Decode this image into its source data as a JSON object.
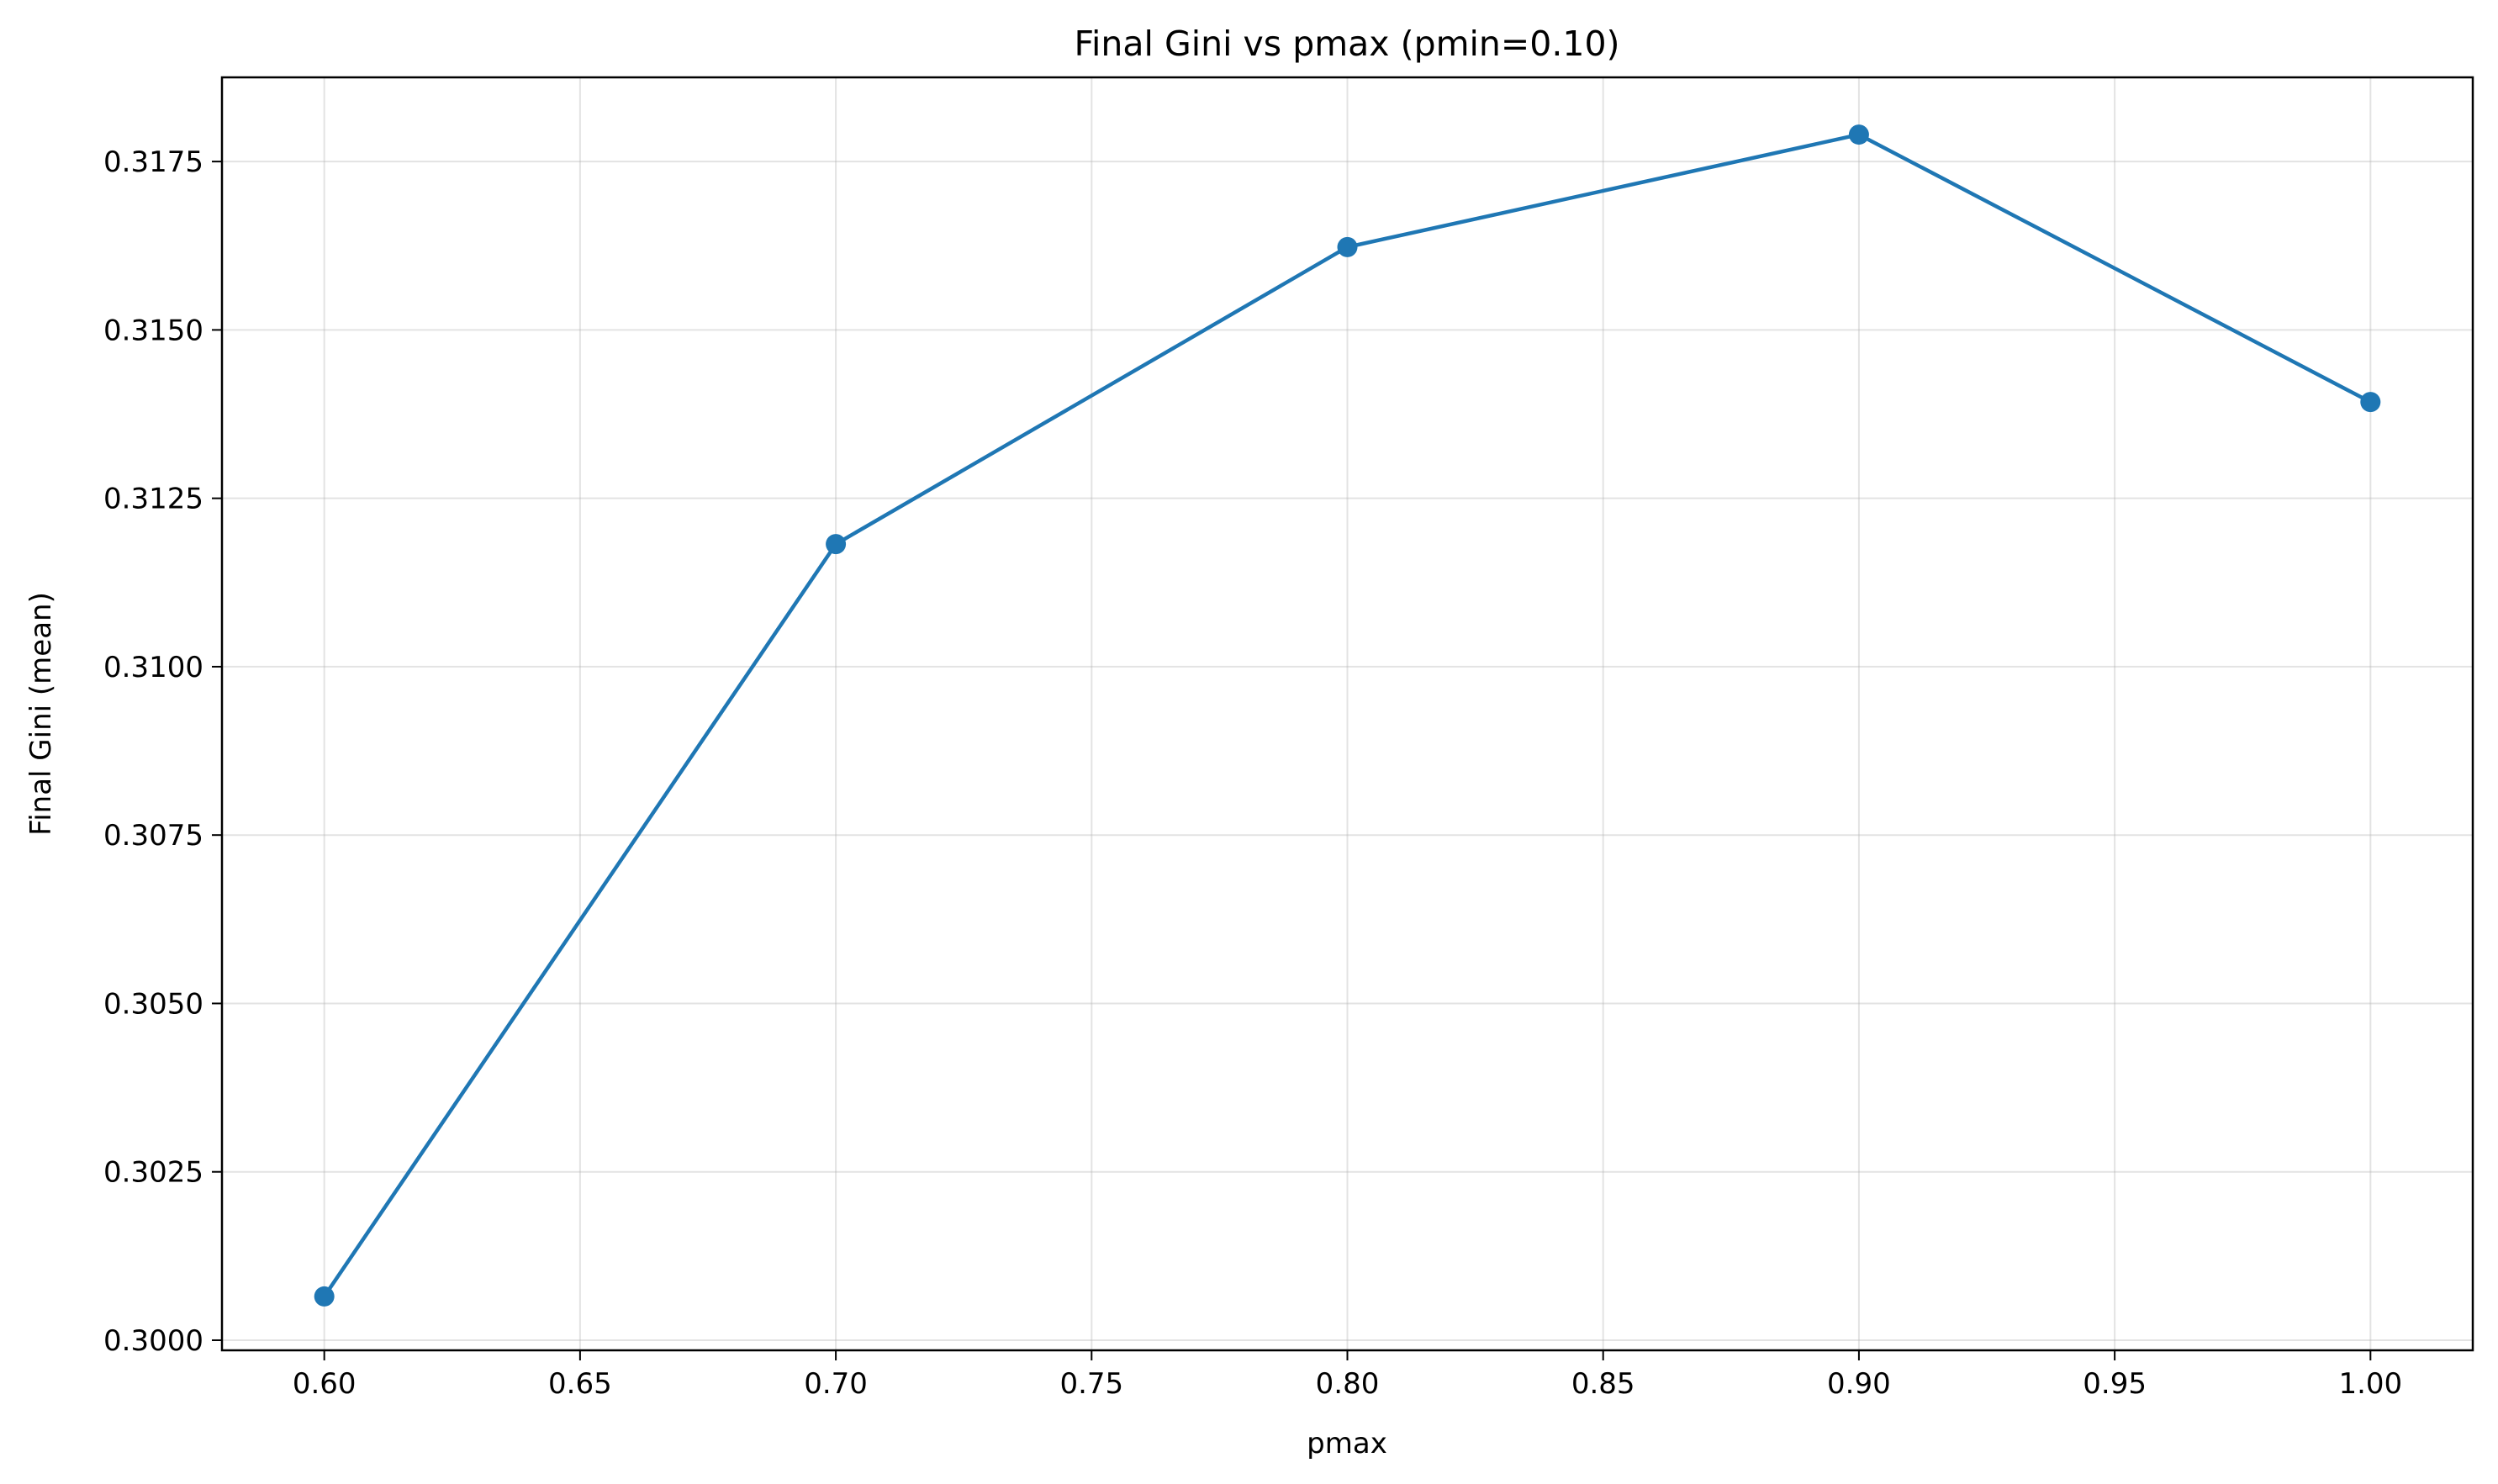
{
  "chart_data": {
    "type": "line",
    "title": "Final Gini vs pmax (pmin=0.10)",
    "xlabel": "pmax",
    "ylabel": "Final Gini (mean)",
    "xlim": [
      0.58,
      1.02
    ],
    "ylim": [
      0.29985,
      0.31875
    ],
    "grid": true,
    "x_ticks": [
      0.6,
      0.65,
      0.7,
      0.75,
      0.8,
      0.85,
      0.9,
      0.95,
      1.0
    ],
    "x_tick_labels": [
      "0.60",
      "0.65",
      "0.70",
      "0.75",
      "0.80",
      "0.85",
      "0.90",
      "0.95",
      "1.00"
    ],
    "y_ticks": [
      0.3,
      0.3025,
      0.305,
      0.3075,
      0.31,
      0.3125,
      0.315,
      0.3175
    ],
    "y_tick_labels": [
      "0.3000",
      "0.3025",
      "0.3050",
      "0.3075",
      "0.3100",
      "0.3125",
      "0.3150",
      "0.3175"
    ],
    "series": [
      {
        "color": "#1f77b4",
        "x": [
          0.6,
          0.7,
          0.8,
          0.9,
          1.0
        ],
        "y": [
          0.30065,
          0.31182,
          0.31623,
          0.3179,
          0.31393
        ]
      }
    ]
  }
}
